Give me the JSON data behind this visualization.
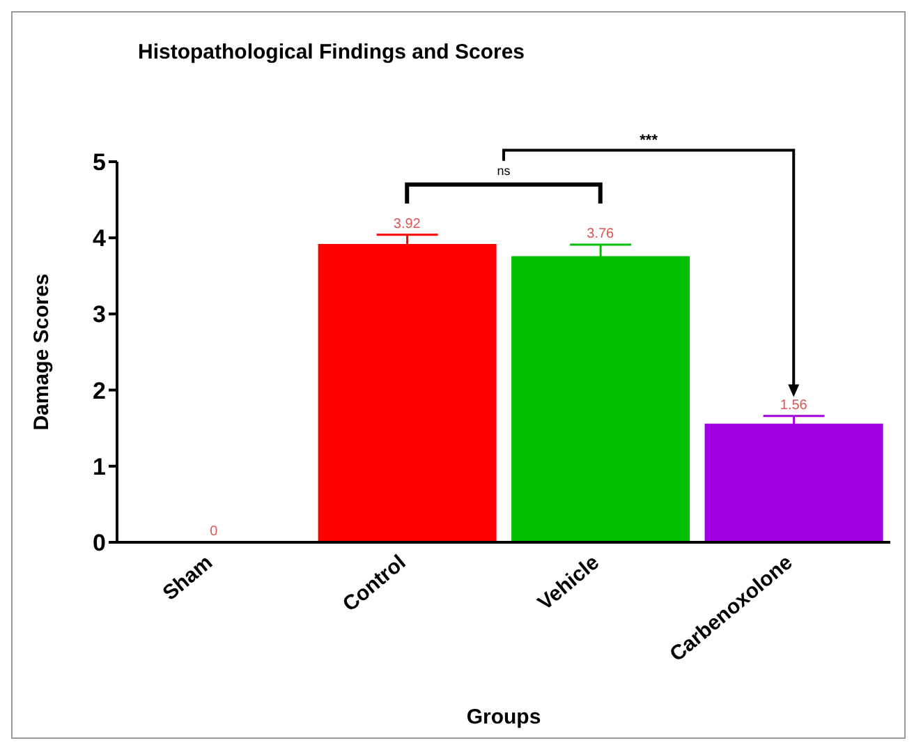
{
  "chart_data": {
    "type": "bar",
    "title": "Histopathological Findings and Scores",
    "xlabel": "Groups",
    "ylabel": "Damage Scores",
    "categories": [
      "Sham",
      "Control",
      "Vehicle",
      "Carbenoxolone"
    ],
    "values": [
      0,
      3.92,
      3.76,
      1.56
    ],
    "errors": [
      null,
      0.12,
      0.15,
      0.1
    ],
    "colors": [
      "#ff0000",
      "#ff0000",
      "#00c000",
      "#a000e0"
    ],
    "data_labels": true,
    "ylim": [
      0,
      5
    ],
    "yticks": [
      0,
      1,
      2,
      3,
      4,
      5
    ],
    "grid": false,
    "legend": false,
    "annotations": [
      "ns",
      "***"
    ]
  }
}
